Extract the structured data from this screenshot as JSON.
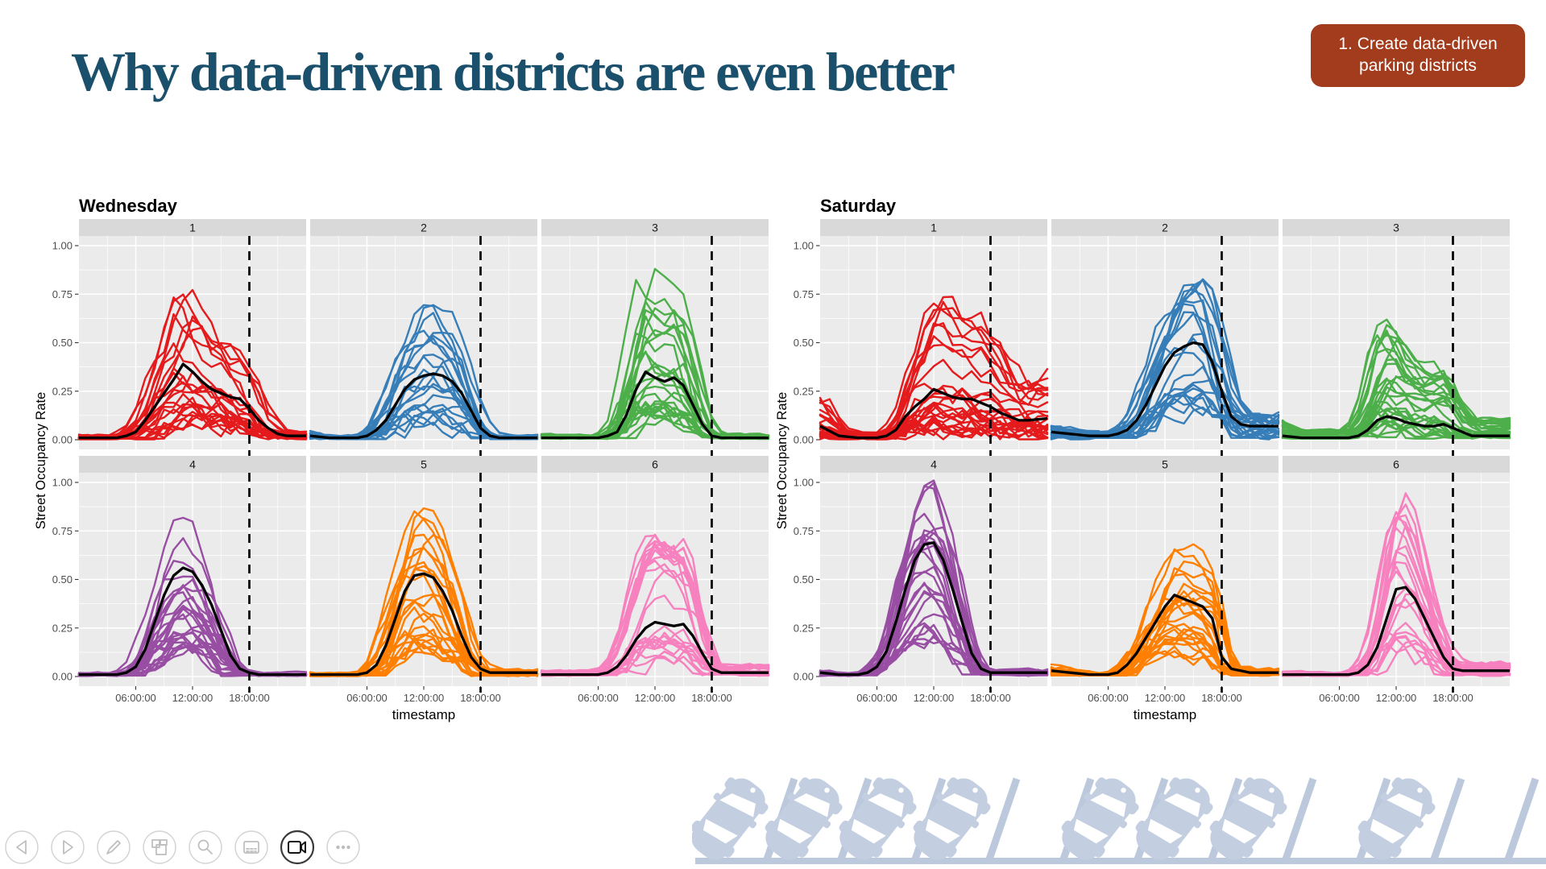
{
  "slide": {
    "title": "Why data-driven districts are even better",
    "title_color": "#1B506C",
    "badge": {
      "line1": "1. Create data-driven",
      "line2": "parking districts",
      "bg": "#A23C1D",
      "text_color": "#FFFFFF"
    }
  },
  "toolbar": {
    "buttons": [
      {
        "name": "previous",
        "icon": "triangle-left-icon",
        "active": false
      },
      {
        "name": "next",
        "icon": "triangle-right-icon",
        "active": false
      },
      {
        "name": "annotate",
        "icon": "pen-icon",
        "active": false
      },
      {
        "name": "slides-overview",
        "icon": "slides-icon",
        "active": false
      },
      {
        "name": "zoom",
        "icon": "magnifier-icon",
        "active": false
      },
      {
        "name": "notes",
        "icon": "notes-icon",
        "active": false
      },
      {
        "name": "camera",
        "icon": "video-camera-icon",
        "active": true
      },
      {
        "name": "more-options",
        "icon": "three-dots-icon",
        "active": false
      }
    ]
  },
  "decoration": {
    "name": "angled-parking-cars",
    "color": "#C3CFE1",
    "line_color": "#BCC9DD",
    "slots": [
      1,
      1,
      1,
      1,
      0,
      1,
      1,
      1,
      0,
      1,
      0,
      0
    ]
  },
  "chart_style": {
    "panel_bg": "#EBEBEB",
    "strip_bg": "#D9D9D9",
    "grid_color": "#FFFFFF",
    "tick_label_color": "#4D4D4D",
    "mean_line_color": "#000000",
    "vline_color": "#000000"
  },
  "chart_data": [
    {
      "type": "line",
      "title": "Wednesday",
      "xlabel": "timestamp",
      "ylabel": "Street Occupancy Rate",
      "x_ticks": [
        "06:00:00",
        "12:00:00",
        "18:00:00"
      ],
      "x_tick_hours": [
        6,
        12,
        18
      ],
      "y_ticks": [
        "0.00",
        "0.25",
        "0.50",
        "0.75",
        "1.00"
      ],
      "y_tick_values": [
        0,
        0.25,
        0.5,
        0.75,
        1.0
      ],
      "xlim_hours": [
        0,
        24
      ],
      "ylim": [
        0,
        1
      ],
      "grid": true,
      "vline_hour": 18,
      "mean_hours": [
        0,
        2,
        4,
        5,
        6,
        7,
        8,
        9,
        10,
        11,
        12,
        13,
        14,
        15,
        16,
        17,
        18,
        19,
        20,
        21,
        22,
        24
      ],
      "facets": [
        {
          "label": "1",
          "color": "#E41A1C",
          "n_lines": 26,
          "envelope_max": 0.8,
          "mean": [
            0.01,
            0.01,
            0.01,
            0.02,
            0.04,
            0.1,
            0.17,
            0.24,
            0.31,
            0.39,
            0.35,
            0.3,
            0.26,
            0.24,
            0.22,
            0.21,
            0.16,
            0.1,
            0.06,
            0.03,
            0.02,
            0.02
          ]
        },
        {
          "label": "2",
          "color": "#377EB8",
          "n_lines": 22,
          "envelope_max": 0.68,
          "mean": [
            0.02,
            0.01,
            0.01,
            0.01,
            0.02,
            0.05,
            0.1,
            0.18,
            0.26,
            0.31,
            0.33,
            0.34,
            0.33,
            0.3,
            0.24,
            0.15,
            0.06,
            0.02,
            0.01,
            0.01,
            0.01,
            0.01
          ]
        },
        {
          "label": "3",
          "color": "#4DAF4A",
          "n_lines": 28,
          "envelope_max": 0.87,
          "mean": [
            0.01,
            0.01,
            0.01,
            0.01,
            0.01,
            0.02,
            0.04,
            0.13,
            0.26,
            0.35,
            0.32,
            0.3,
            0.32,
            0.28,
            0.18,
            0.08,
            0.02,
            0.01,
            0.01,
            0.01,
            0.01,
            0.01
          ]
        },
        {
          "label": "4",
          "color": "#984EA3",
          "n_lines": 26,
          "envelope_max": 0.83,
          "mean": [
            0.01,
            0.01,
            0.01,
            0.02,
            0.05,
            0.14,
            0.28,
            0.42,
            0.52,
            0.56,
            0.54,
            0.47,
            0.37,
            0.24,
            0.11,
            0.04,
            0.02,
            0.01,
            0.01,
            0.01,
            0.01,
            0.01
          ]
        },
        {
          "label": "5",
          "color": "#FF7F00",
          "n_lines": 26,
          "envelope_max": 0.85,
          "mean": [
            0.01,
            0.01,
            0.01,
            0.01,
            0.02,
            0.06,
            0.16,
            0.3,
            0.44,
            0.52,
            0.53,
            0.51,
            0.44,
            0.34,
            0.21,
            0.1,
            0.04,
            0.02,
            0.02,
            0.02,
            0.02,
            0.02
          ]
        },
        {
          "label": "6",
          "color": "#F781BF",
          "n_lines": 26,
          "envelope_max": 0.72,
          "mean": [
            0.01,
            0.01,
            0.01,
            0.01,
            0.01,
            0.02,
            0.05,
            0.11,
            0.19,
            0.25,
            0.28,
            0.27,
            0.26,
            0.27,
            0.21,
            0.12,
            0.04,
            0.02,
            0.02,
            0.02,
            0.02,
            0.02
          ]
        }
      ]
    },
    {
      "type": "line",
      "title": "Saturday",
      "xlabel": "timestamp",
      "ylabel": "Street Occupancy Rate",
      "x_ticks": [
        "06:00:00",
        "12:00:00",
        "18:00:00"
      ],
      "x_tick_hours": [
        6,
        12,
        18
      ],
      "y_ticks": [
        "0.00",
        "0.25",
        "0.50",
        "0.75",
        "1.00"
      ],
      "y_tick_values": [
        0,
        0.25,
        0.5,
        0.75,
        1.0
      ],
      "xlim_hours": [
        0,
        24
      ],
      "ylim": [
        0,
        1
      ],
      "grid": true,
      "vline_hour": 18,
      "mean_hours": [
        0,
        2,
        4,
        5,
        6,
        7,
        8,
        9,
        10,
        11,
        12,
        13,
        14,
        15,
        16,
        17,
        18,
        19,
        20,
        21,
        22,
        24
      ],
      "facets": [
        {
          "label": "1",
          "color": "#E41A1C",
          "n_lines": 28,
          "envelope_max": 0.77,
          "mean": [
            0.07,
            0.02,
            0.01,
            0.01,
            0.01,
            0.02,
            0.05,
            0.12,
            0.17,
            0.21,
            0.26,
            0.24,
            0.22,
            0.21,
            0.21,
            0.19,
            0.17,
            0.14,
            0.12,
            0.1,
            0.1,
            0.11
          ]
        },
        {
          "label": "2",
          "color": "#377EB8",
          "n_lines": 22,
          "envelope_max": 0.82,
          "mean": [
            0.04,
            0.03,
            0.02,
            0.02,
            0.02,
            0.03,
            0.05,
            0.1,
            0.18,
            0.28,
            0.38,
            0.45,
            0.48,
            0.5,
            0.49,
            0.4,
            0.25,
            0.12,
            0.08,
            0.07,
            0.07,
            0.07
          ]
        },
        {
          "label": "3",
          "color": "#4DAF4A",
          "n_lines": 30,
          "envelope_max": 0.63,
          "mean": [
            0.02,
            0.01,
            0.01,
            0.01,
            0.01,
            0.01,
            0.02,
            0.05,
            0.1,
            0.12,
            0.11,
            0.09,
            0.08,
            0.07,
            0.07,
            0.08,
            0.06,
            0.04,
            0.02,
            0.02,
            0.02,
            0.02
          ]
        },
        {
          "label": "4",
          "color": "#984EA3",
          "n_lines": 26,
          "envelope_max": 0.99,
          "mean": [
            0.02,
            0.01,
            0.01,
            0.02,
            0.05,
            0.13,
            0.28,
            0.45,
            0.6,
            0.68,
            0.69,
            0.6,
            0.45,
            0.28,
            0.12,
            0.04,
            0.02,
            0.02,
            0.02,
            0.02,
            0.02,
            0.02
          ]
        },
        {
          "label": "5",
          "color": "#FF7F00",
          "n_lines": 26,
          "envelope_max": 0.73,
          "mean": [
            0.03,
            0.02,
            0.01,
            0.01,
            0.01,
            0.02,
            0.06,
            0.12,
            0.2,
            0.28,
            0.36,
            0.42,
            0.4,
            0.38,
            0.36,
            0.3,
            0.1,
            0.04,
            0.03,
            0.02,
            0.02,
            0.02
          ]
        },
        {
          "label": "6",
          "color": "#F781BF",
          "n_lines": 24,
          "envelope_max": 0.93,
          "mean": [
            0.01,
            0.01,
            0.01,
            0.01,
            0.01,
            0.01,
            0.02,
            0.06,
            0.15,
            0.3,
            0.45,
            0.46,
            0.4,
            0.3,
            0.2,
            0.1,
            0.04,
            0.03,
            0.03,
            0.03,
            0.03,
            0.03
          ]
        }
      ]
    }
  ]
}
